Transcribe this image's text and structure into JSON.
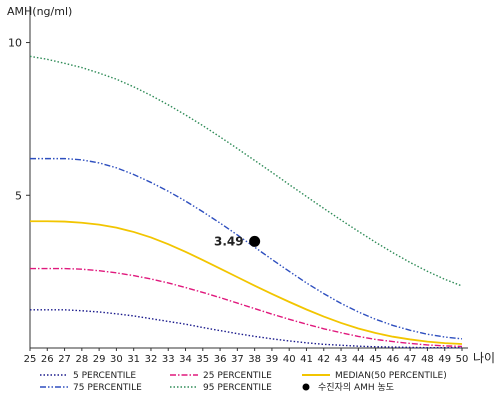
{
  "chart_data": {
    "type": "line",
    "ylabel": "AMH(ng/ml)",
    "xlabel": "나이",
    "x": [
      25,
      26,
      27,
      28,
      29,
      30,
      31,
      32,
      33,
      34,
      35,
      36,
      37,
      38,
      39,
      40,
      41,
      42,
      43,
      44,
      45,
      46,
      47,
      48,
      49,
      50
    ],
    "ylim": [
      0,
      11
    ],
    "yticks": [
      5,
      10
    ],
    "grid": false,
    "legend_position": "bottom",
    "series": [
      {
        "name": "5 PERCENTILE",
        "color": "#1a1a8c",
        "dash": "1.5,2",
        "values": [
          1.25,
          1.25,
          1.25,
          1.22,
          1.18,
          1.12,
          1.05,
          0.96,
          0.87,
          0.78,
          0.67,
          0.57,
          0.47,
          0.38,
          0.3,
          0.23,
          0.17,
          0.12,
          0.09,
          0.06,
          0.04,
          0.03,
          0.02,
          0.01,
          0.01,
          0.01
        ]
      },
      {
        "name": "25 PERCENTILE",
        "color": "#e0197d",
        "dash": "6,2,1.5,2",
        "values": [
          2.6,
          2.6,
          2.6,
          2.58,
          2.53,
          2.46,
          2.37,
          2.26,
          2.13,
          1.98,
          1.82,
          1.65,
          1.47,
          1.29,
          1.11,
          0.94,
          0.78,
          0.63,
          0.5,
          0.38,
          0.28,
          0.21,
          0.15,
          0.1,
          0.07,
          0.05
        ]
      },
      {
        "name": "MEDIAN(50 PERCENTILE)",
        "color": "#f2c500",
        "dash": "",
        "values": [
          4.15,
          4.15,
          4.14,
          4.1,
          4.04,
          3.94,
          3.8,
          3.62,
          3.4,
          3.15,
          2.88,
          2.6,
          2.32,
          2.04,
          1.77,
          1.51,
          1.26,
          1.03,
          0.82,
          0.64,
          0.49,
          0.37,
          0.28,
          0.21,
          0.16,
          0.13
        ]
      },
      {
        "name": "75 PERCENTILE",
        "color": "#2e4fbf",
        "dash": "6,2,1.5,2,1.5,2",
        "values": [
          6.2,
          6.2,
          6.2,
          6.16,
          6.06,
          5.9,
          5.68,
          5.42,
          5.13,
          4.81,
          4.46,
          4.09,
          3.7,
          3.3,
          2.9,
          2.51,
          2.13,
          1.78,
          1.46,
          1.18,
          0.94,
          0.74,
          0.58,
          0.45,
          0.36,
          0.3
        ]
      },
      {
        "name": "95 PERCENTILE",
        "color": "#2e8b57",
        "dash": "1.5,2",
        "values": [
          9.55,
          9.45,
          9.32,
          9.18,
          9.0,
          8.8,
          8.55,
          8.27,
          7.96,
          7.63,
          7.28,
          6.91,
          6.53,
          6.14,
          5.75,
          5.35,
          4.96,
          4.57,
          4.19,
          3.82,
          3.46,
          3.12,
          2.8,
          2.51,
          2.25,
          2.03
        ]
      }
    ],
    "marker": {
      "name": "수진자의 AMH 농도",
      "x": 38,
      "y": 3.49,
      "label": "3.49",
      "color": "#000000"
    }
  }
}
